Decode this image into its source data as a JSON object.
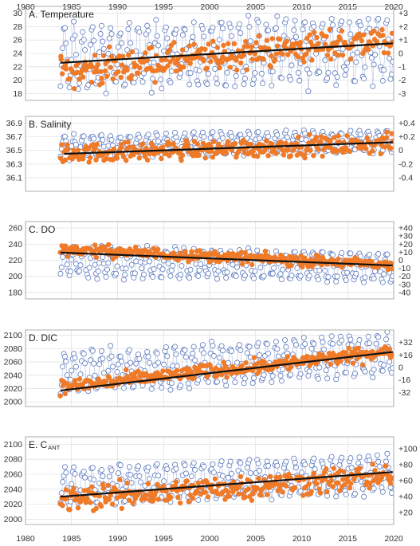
{
  "chart_data": [
    {
      "type": "scatter",
      "title": "A. Temperature",
      "title_sub": "",
      "x_ticks": [
        1980,
        1985,
        1990,
        1995,
        2000,
        2005,
        2010,
        2015,
        2020
      ],
      "xlim": [
        1980,
        2020
      ],
      "ylim": [
        17,
        31
      ],
      "y_left_ticks": [
        18,
        20,
        22,
        24,
        26,
        28,
        30
      ],
      "y_right_lim": [
        -3.5,
        3.5
      ],
      "y_right_ticks": [
        "-3",
        "-2",
        "-1",
        "0",
        "+1",
        "+2",
        "+3"
      ],
      "y_right_tick_values": [
        -3,
        -2,
        -1,
        0,
        1,
        2,
        3
      ],
      "series": [
        {
          "kind": "observations",
          "style": "open circles",
          "color": "#5b78bf",
          "x_range": [
            1983.8,
            2019.9
          ],
          "seasonal_range": [
            19.5,
            28.5
          ]
        },
        {
          "kind": "anomalies",
          "style": "filled circles",
          "color": "#ef7a28",
          "axis": "right",
          "x_range": [
            1983.8,
            2019.9
          ],
          "mean_range": [
            -1.4,
            1.1
          ],
          "spread": 1.0
        }
      ],
      "trend": {
        "color": "#111111",
        "x": [
          1983.8,
          2019.9
        ],
        "y": [
          22.6,
          25.5
        ]
      },
      "grid": true
    },
    {
      "type": "scatter",
      "title": "B. Salinity",
      "title_sub": "",
      "x_ticks": [
        1980,
        1985,
        1990,
        1995,
        2000,
        2005,
        2010,
        2015,
        2020
      ],
      "xlim": [
        1980,
        2020
      ],
      "ylim": [
        35.9,
        37.0
      ],
      "y_left_ticks": [
        36.1,
        36.3,
        36.5,
        36.7,
        36.9
      ],
      "y_right_lim": [
        -0.6,
        0.5
      ],
      "y_right_ticks": [
        "-0.4",
        "-0.2",
        "0",
        "+0.2",
        "+0.4"
      ],
      "y_right_tick_values": [
        -0.4,
        -0.2,
        0,
        0.2,
        0.4
      ],
      "series": [
        {
          "kind": "observations",
          "style": "open circles",
          "color": "#5b78bf",
          "x_range": [
            1983.8,
            2019.9
          ],
          "seasonal_range": [
            36.45,
            36.75
          ]
        },
        {
          "kind": "anomalies",
          "style": "filled circles",
          "color": "#ef7a28",
          "axis": "right",
          "x_range": [
            1983.8,
            2019.9
          ],
          "mean_range": [
            -0.05,
            0.1
          ],
          "spread": 0.12
        }
      ],
      "trend": {
        "color": "#111111",
        "x": [
          1984.2,
          2019.9
        ],
        "y": [
          36.45,
          36.62
        ]
      },
      "grid": true
    },
    {
      "type": "scatter",
      "title": "C. DO",
      "title_sub": "",
      "x_ticks": [
        1980,
        1985,
        1990,
        1995,
        2000,
        2005,
        2010,
        2015,
        2020
      ],
      "xlim": [
        1980,
        2020
      ],
      "ylim": [
        172,
        268
      ],
      "y_left_ticks": [
        180,
        200,
        220,
        240,
        260
      ],
      "y_right_lim": [
        -48,
        48
      ],
      "y_right_ticks": [
        "-40",
        "-30",
        "-20",
        "-10",
        "0",
        "+10",
        "+20",
        "+30",
        "+40"
      ],
      "y_right_tick_values": [
        -40,
        -30,
        -20,
        -10,
        0,
        10,
        20,
        30,
        40
      ],
      "series": [
        {
          "kind": "observations",
          "style": "open circles",
          "color": "#5b78bf",
          "x_range": [
            1983.8,
            2019.9
          ],
          "seasonal_range": [
            198,
            232
          ]
        },
        {
          "kind": "anomalies",
          "style": "filled circles",
          "color": "#ef7a28",
          "axis": "right",
          "x_range": [
            1983.8,
            2019.9
          ],
          "mean_range": [
            14,
            -6
          ],
          "spread": 6
        }
      ],
      "trend": {
        "color": "#111111",
        "x": [
          1983.8,
          2019.9
        ],
        "y": [
          229.5,
          213.5
        ]
      },
      "grid": true
    },
    {
      "type": "scatter",
      "title": "D. DIC",
      "title_sub": "",
      "x_ticks": [
        1980,
        1985,
        1990,
        1995,
        2000,
        2005,
        2010,
        2015,
        2020
      ],
      "xlim": [
        1980,
        2020
      ],
      "ylim": [
        1993,
        2108
      ],
      "y_left_ticks": [
        2000,
        2020,
        2040,
        2060,
        2080,
        2100
      ],
      "y_right_lim": [
        -50,
        48
      ],
      "y_right_ticks": [
        "-32",
        "-16",
        "0",
        "+16",
        "+32"
      ],
      "y_right_tick_values": [
        -32,
        -16,
        0,
        16,
        32
      ],
      "series": [
        {
          "kind": "observations",
          "style": "open circles",
          "color": "#5b78bf",
          "x_range": [
            1983.8,
            2019.9
          ],
          "seasonal_range": [
            2030,
            2086
          ]
        },
        {
          "kind": "anomalies",
          "style": "filled circles",
          "color": "#ef7a28",
          "axis": "right",
          "x_range": [
            1983.8,
            2019.9
          ],
          "mean_range": [
            -25,
            20
          ],
          "spread": 8
        }
      ],
      "trend": {
        "color": "#111111",
        "x": [
          1983.8,
          2019.9
        ],
        "y": [
          2017,
          2075
        ]
      },
      "grid": true
    },
    {
      "type": "scatter",
      "title": "E. C",
      "title_sub": "ANT",
      "x_ticks": [
        1980,
        1985,
        1990,
        1995,
        2000,
        2005,
        2010,
        2015,
        2020
      ],
      "xlim": [
        1980,
        2020
      ],
      "ylim": [
        1993,
        2110
      ],
      "y_left_ticks": [
        2000,
        2020,
        2040,
        2060,
        2080,
        2100
      ],
      "y_right_lim": [
        5,
        115
      ],
      "y_right_ticks": [
        "+20",
        "+40",
        "+60",
        "+80",
        "+100"
      ],
      "y_right_tick_values": [
        20,
        40,
        60,
        80,
        100
      ],
      "series": [
        {
          "kind": "observations",
          "style": "open circles",
          "color": "#5b78bf",
          "x_range": [
            1983.8,
            2019.9
          ],
          "seasonal_range": [
            2030,
            2075
          ]
        },
        {
          "kind": "anomalies",
          "style": "filled circles",
          "color": "#ef7a28",
          "axis": "right",
          "x_range": [
            1983.8,
            2019.9
          ],
          "mean_range": [
            36,
            66
          ],
          "spread": 14
        }
      ],
      "trend": {
        "color": "#111111",
        "x": [
          1983.8,
          2019.9
        ],
        "y": [
          2030,
          2063
        ]
      },
      "grid": true
    }
  ]
}
